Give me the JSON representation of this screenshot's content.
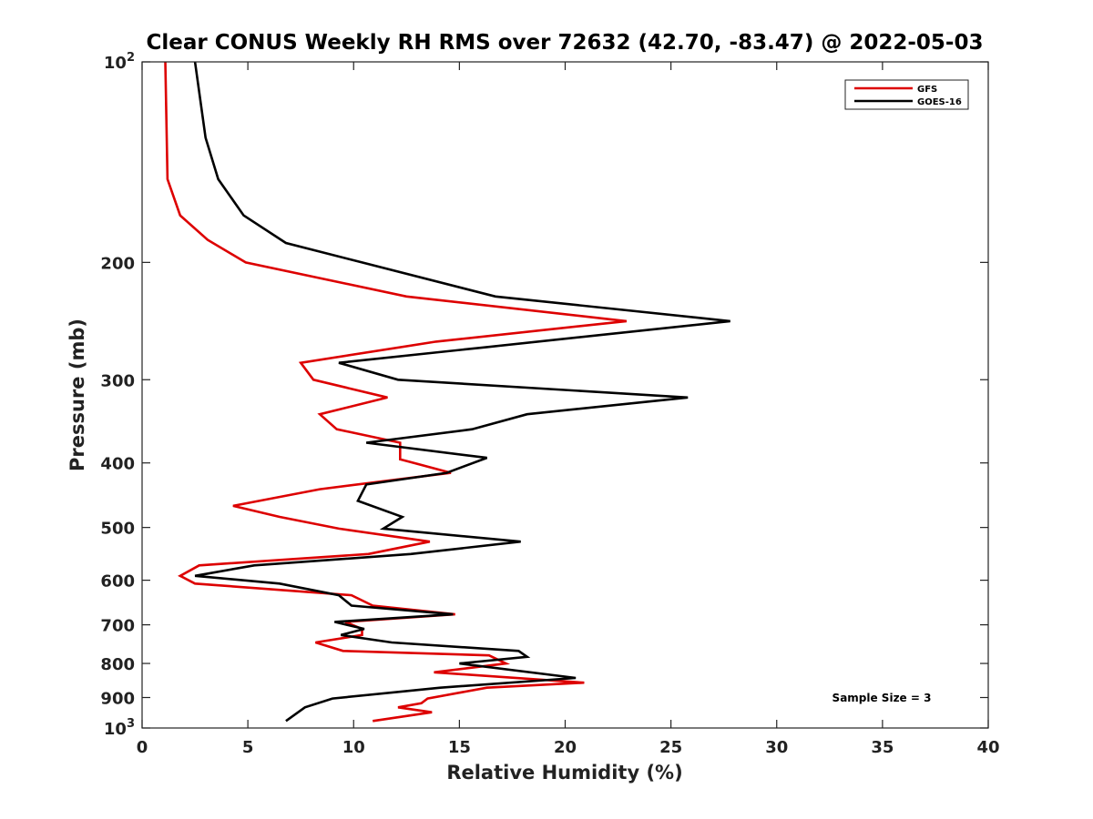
{
  "chart_data": {
    "type": "line",
    "title": "Clear CONUS Weekly RH RMS over 72632 (42.70, -83.47) @ 2022-05-03",
    "xlabel": "Relative Humidity (%)",
    "ylabel": "Pressure (mb)",
    "xlim": [
      0,
      40
    ],
    "ylim": [
      100,
      1000
    ],
    "y_scale": "log",
    "y_reversed": true,
    "x_ticks": [
      0,
      5,
      10,
      15,
      20,
      25,
      30,
      35,
      40
    ],
    "y_ticks": [
      {
        "value": 100,
        "label": "10",
        "sup": "2"
      },
      {
        "value": 200,
        "label": "200",
        "sup": ""
      },
      {
        "value": 300,
        "label": "300",
        "sup": ""
      },
      {
        "value": 400,
        "label": "400",
        "sup": ""
      },
      {
        "value": 500,
        "label": "500",
        "sup": ""
      },
      {
        "value": 600,
        "label": "600",
        "sup": ""
      },
      {
        "value": 700,
        "label": "700",
        "sup": ""
      },
      {
        "value": 800,
        "label": "800",
        "sup": ""
      },
      {
        "value": 900,
        "label": "900",
        "sup": ""
      },
      {
        "value": 1000,
        "label": "10",
        "sup": "3"
      }
    ],
    "legend_position": "top-right",
    "grid": false,
    "annotation": "Sample Size = 3",
    "series": [
      {
        "name": "GFS",
        "color": "#dd0000",
        "points": [
          [
            1.1,
            100
          ],
          [
            1.2,
            150
          ],
          [
            1.8,
            170
          ],
          [
            3.1,
            185
          ],
          [
            4.9,
            200
          ],
          [
            12.5,
            225
          ],
          [
            22.9,
            245
          ],
          [
            13.9,
            263
          ],
          [
            7.5,
            283
          ],
          [
            8.1,
            300
          ],
          [
            11.6,
            319
          ],
          [
            8.4,
            338
          ],
          [
            9.2,
            356
          ],
          [
            12.2,
            373
          ],
          [
            12.2,
            395
          ],
          [
            14.6,
            414
          ],
          [
            8.4,
            438
          ],
          [
            4.3,
            464
          ],
          [
            6.5,
            482
          ],
          [
            9.3,
            502
          ],
          [
            13.6,
            525
          ],
          [
            10.7,
            548
          ],
          [
            2.7,
            570
          ],
          [
            1.8,
            591
          ],
          [
            2.5,
            607
          ],
          [
            9.9,
            632
          ],
          [
            10.9,
            655
          ],
          [
            14.8,
            675
          ],
          [
            9.6,
            693
          ],
          [
            10.4,
            710
          ],
          [
            10.4,
            725
          ],
          [
            8.2,
            744
          ],
          [
            9.5,
            766
          ],
          [
            16.4,
            778
          ],
          [
            17.2,
            800
          ],
          [
            13.8,
            825
          ],
          [
            20.9,
            855
          ],
          [
            16.3,
            870
          ],
          [
            13.5,
            903
          ],
          [
            13.2,
            918
          ],
          [
            12.1,
            931
          ],
          [
            13.7,
            947
          ],
          [
            10.9,
            976
          ]
        ]
      },
      {
        "name": "GOES-16",
        "color": "#000000",
        "points": [
          [
            2.5,
            100
          ],
          [
            3.0,
            130
          ],
          [
            3.6,
            150
          ],
          [
            4.8,
            170
          ],
          [
            6.8,
            187
          ],
          [
            10.4,
            200
          ],
          [
            16.7,
            225
          ],
          [
            27.8,
            245
          ],
          [
            16.3,
            268
          ],
          [
            9.3,
            283
          ],
          [
            12.1,
            300
          ],
          [
            25.8,
            319
          ],
          [
            18.2,
            338
          ],
          [
            15.6,
            356
          ],
          [
            10.6,
            373
          ],
          [
            16.3,
            393
          ],
          [
            14.4,
            414
          ],
          [
            10.6,
            431
          ],
          [
            10.2,
            456
          ],
          [
            12.3,
            482
          ],
          [
            11.4,
            502
          ],
          [
            17.9,
            525
          ],
          [
            12.7,
            548
          ],
          [
            5.3,
            570
          ],
          [
            2.5,
            591
          ],
          [
            6.5,
            607
          ],
          [
            9.3,
            632
          ],
          [
            9.9,
            655
          ],
          [
            14.7,
            675
          ],
          [
            9.1,
            693
          ],
          [
            10.5,
            710
          ],
          [
            9.4,
            725
          ],
          [
            11.8,
            744
          ],
          [
            17.8,
            766
          ],
          [
            18.2,
            782
          ],
          [
            15.0,
            800
          ],
          [
            20.5,
            841
          ],
          [
            14.1,
            870
          ],
          [
            9.0,
            903
          ],
          [
            7.7,
            931
          ],
          [
            6.8,
            976
          ]
        ]
      }
    ]
  }
}
